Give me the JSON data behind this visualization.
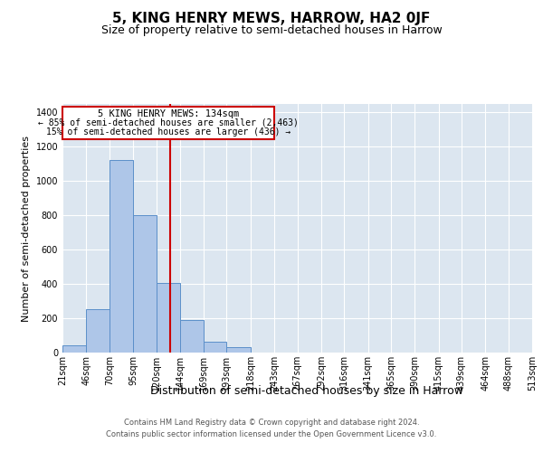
{
  "title": "5, KING HENRY MEWS, HARROW, HA2 0JF",
  "subtitle": "Size of property relative to semi-detached houses in Harrow",
  "xlabel": "Distribution of semi-detached houses by size in Harrow",
  "ylabel": "Number of semi-detached properties",
  "footer1": "Contains HM Land Registry data © Crown copyright and database right 2024.",
  "footer2": "Contains public sector information licensed under the Open Government Licence v3.0.",
  "annotation_title": "5 KING HENRY MEWS: 134sqm",
  "annotation_line1": "← 85% of semi-detached houses are smaller (2,463)",
  "annotation_line2": "15% of semi-detached houses are larger (436) →",
  "bin_edges": [
    21,
    46,
    70,
    95,
    120,
    144,
    169,
    193,
    218,
    243,
    267,
    292,
    316,
    341,
    365,
    390,
    415,
    439,
    464,
    488,
    513
  ],
  "bin_labels": [
    "21sqm",
    "46sqm",
    "70sqm",
    "95sqm",
    "120sqm",
    "144sqm",
    "169sqm",
    "193sqm",
    "218sqm",
    "243sqm",
    "267sqm",
    "292sqm",
    "316sqm",
    "341sqm",
    "365sqm",
    "390sqm",
    "415sqm",
    "439sqm",
    "464sqm",
    "488sqm",
    "513sqm"
  ],
  "bar_values": [
    40,
    255,
    1125,
    800,
    405,
    190,
    65,
    30,
    0,
    0,
    0,
    0,
    0,
    0,
    0,
    0,
    0,
    0,
    0,
    0
  ],
  "bar_color": "#aec6e8",
  "bar_edge_color": "#5b8fc9",
  "vline_x": 134,
  "vline_color": "#cc0000",
  "annotation_box_edge": "#cc0000",
  "annotation_box_face": "white",
  "ylim_max": 1450,
  "yticks": [
    0,
    200,
    400,
    600,
    800,
    1000,
    1200,
    1400
  ],
  "bg_color": "#dce6f0",
  "grid_color": "white",
  "title_fontsize": 11,
  "subtitle_fontsize": 9,
  "ylabel_fontsize": 8,
  "xlabel_fontsize": 9,
  "tick_fontsize": 7,
  "footer_fontsize": 6
}
